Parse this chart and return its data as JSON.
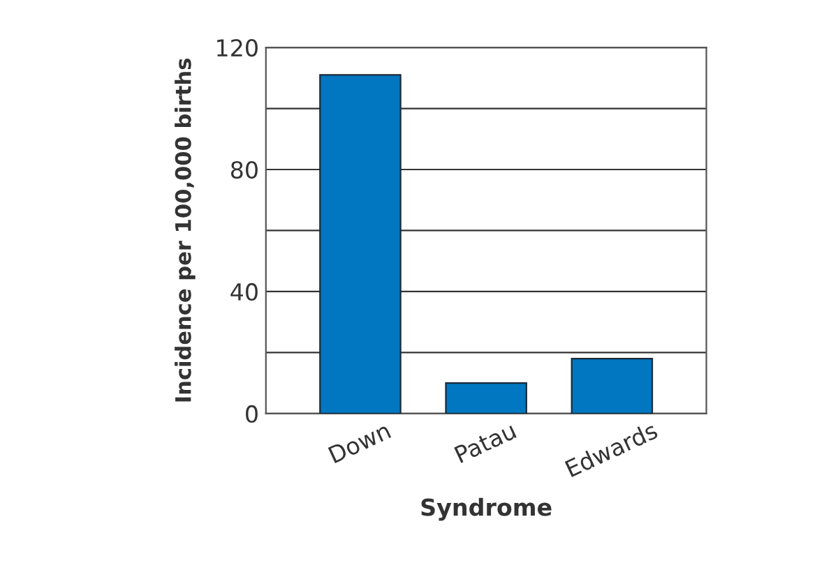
{
  "chart_data": {
    "type": "bar",
    "xlabel": "Syndrome",
    "ylabel": "Incidence per 100,000 births",
    "categories": [
      "Down",
      "Patau",
      "Edwards"
    ],
    "values": [
      111,
      10,
      18
    ],
    "color": "#0077c0",
    "ylim": [
      0,
      120
    ],
    "yticks": [
      0,
      {
        "value": 20,
        "label": null
      },
      40,
      {
        "value": 60,
        "label": null
      },
      80,
      {
        "value": 100,
        "label": null
      },
      120
    ],
    "grid": "y"
  }
}
